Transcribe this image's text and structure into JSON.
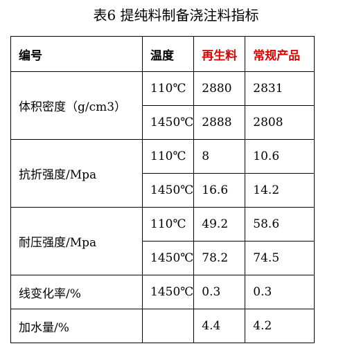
{
  "caption": "表6 提纯料制备浇注料指标",
  "headers": [
    "编号",
    "温度",
    "再生料",
    "常规产品"
  ],
  "rows": {
    "density": {
      "label": "体积密度（g/cm3）",
      "r1": {
        "temp": "110℃",
        "recycled": "2880",
        "regular": "2831"
      },
      "r2": {
        "temp": "1450℃",
        "recycled": "2888",
        "regular": "2808"
      }
    },
    "flexural": {
      "label": "抗折强度/Mpa",
      "r1": {
        "temp": "110℃",
        "recycled": "8",
        "regular": "10.6"
      },
      "r2": {
        "temp": "1450℃",
        "recycled": "16.6",
        "regular": "14.2"
      }
    },
    "compressive": {
      "label": "耐压强度/Mpa",
      "r1": {
        "temp": "110℃",
        "recycled": "49.2",
        "regular": "58.6"
      },
      "r2": {
        "temp": "1450℃",
        "recycled": "78.2",
        "regular": "74.5"
      }
    },
    "linear": {
      "label": "线变化率/%",
      "temp": "1450℃",
      "recycled": "0.3",
      "regular": "0.3"
    },
    "water": {
      "label": "加水量/%",
      "temp": "",
      "recycled": "4.4",
      "regular": "4.2"
    }
  }
}
